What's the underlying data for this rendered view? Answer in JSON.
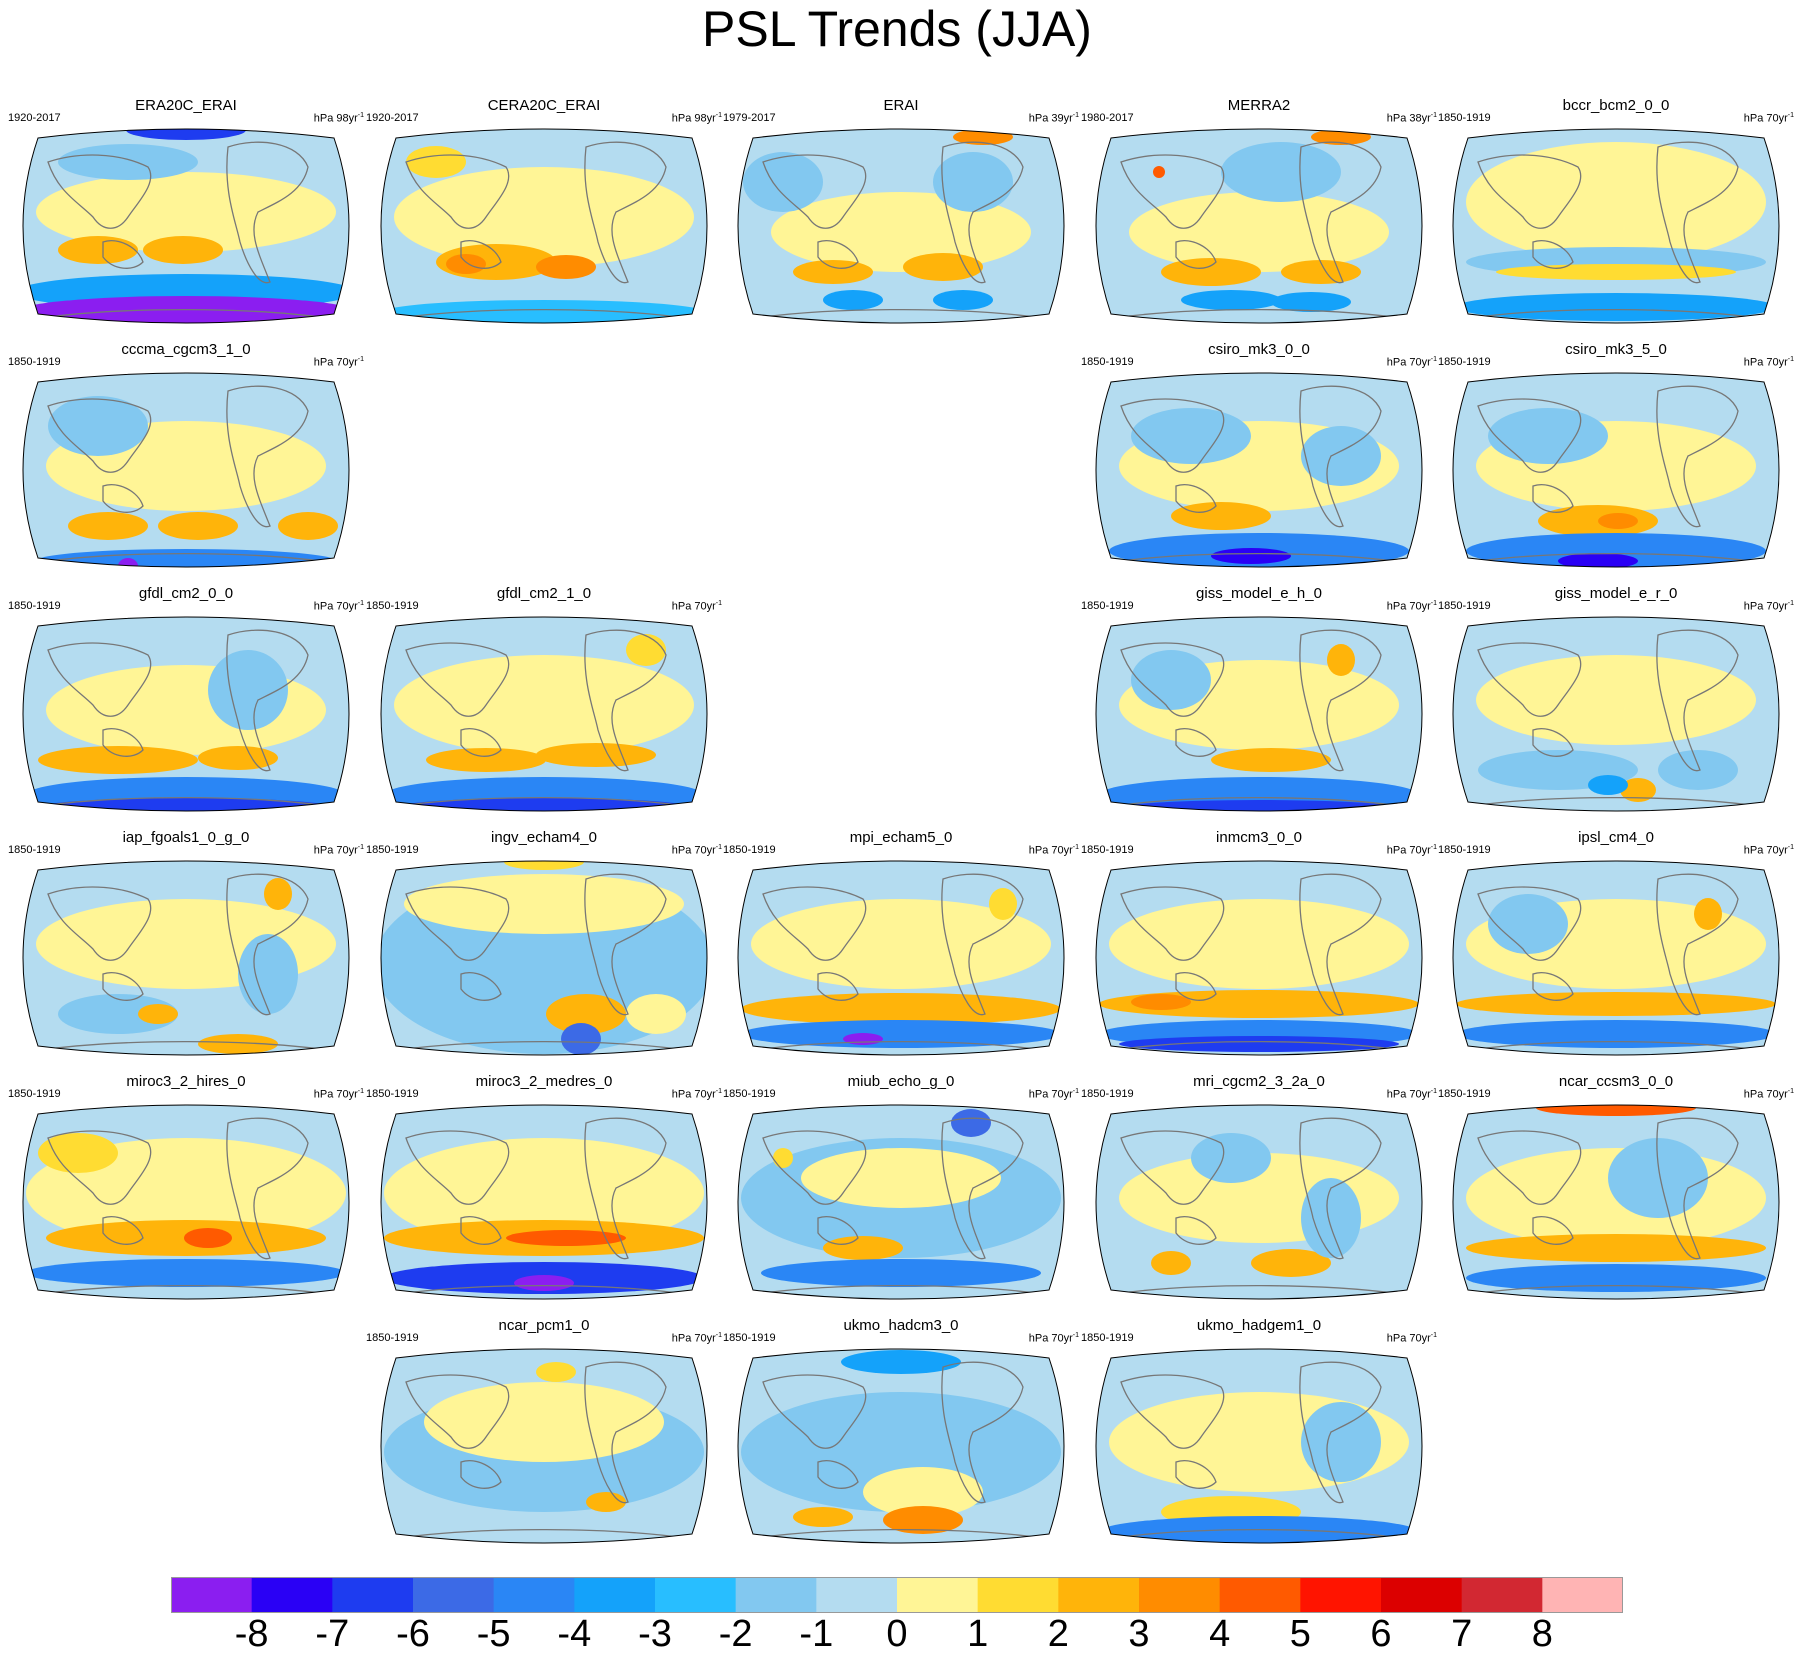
{
  "title": "PSL Trends (JJA)",
  "colorbar": {
    "colors": [
      "#8b1ef0",
      "#2a00f5",
      "#1e3cf0",
      "#3c6ae6",
      "#2a86f5",
      "#14a2fa",
      "#28beff",
      "#82c8f0",
      "#b4dcf0",
      "#fff596",
      "#ffdc32",
      "#ffb40a",
      "#ff8c00",
      "#ff5a00",
      "#ff1400",
      "#dc0000",
      "#d22832",
      "#ffb4b4"
    ],
    "labels": [
      "-8",
      "-7",
      "-6",
      "-5",
      "-4",
      "-3",
      "-2",
      "-1",
      "0",
      "1",
      "2",
      "3",
      "4",
      "5",
      "6",
      "7",
      "8"
    ]
  },
  "panels": [
    {
      "title": "ERA20C_ERAI",
      "period": "1920-2017",
      "units": "hPa 98yr",
      "exp": "-1"
    },
    {
      "title": "CERA20C_ERAI",
      "period": "1920-2017",
      "units": "hPa 98yr",
      "exp": "-1"
    },
    {
      "title": "ERAI",
      "period": "1979-2017",
      "units": "hPa 39yr",
      "exp": "-1"
    },
    {
      "title": "MERRA2",
      "period": "1980-2017",
      "units": "hPa 38yr",
      "exp": "-1"
    },
    {
      "title": "bccr_bcm2_0_0",
      "period": "1850-1919",
      "units": "hPa 70yr",
      "exp": "-1"
    },
    {
      "title": "cccma_cgcm3_1_0",
      "period": "1850-1919",
      "units": "hPa 70yr",
      "exp": "-1"
    },
    {
      "title": "csiro_mk3_0_0",
      "period": "1850-1919",
      "units": "hPa 70yr",
      "exp": "-1"
    },
    {
      "title": "csiro_mk3_5_0",
      "period": "1850-1919",
      "units": "hPa 70yr",
      "exp": "-1"
    },
    {
      "title": "gfdl_cm2_0_0",
      "period": "1850-1919",
      "units": "hPa 70yr",
      "exp": "-1"
    },
    {
      "title": "gfdl_cm2_1_0",
      "period": "1850-1919",
      "units": "hPa 70yr",
      "exp": "-1"
    },
    {
      "title": "giss_model_e_h_0",
      "period": "1850-1919",
      "units": "hPa 70yr",
      "exp": "-1"
    },
    {
      "title": "giss_model_e_r_0",
      "period": "1850-1919",
      "units": "hPa 70yr",
      "exp": "-1"
    },
    {
      "title": "iap_fgoals1_0_g_0",
      "period": "1850-1919",
      "units": "hPa 70yr",
      "exp": "-1"
    },
    {
      "title": "ingv_echam4_0",
      "period": "1850-1919",
      "units": "hPa 70yr",
      "exp": "-1"
    },
    {
      "title": "mpi_echam5_0",
      "period": "1850-1919",
      "units": "hPa 70yr",
      "exp": "-1"
    },
    {
      "title": "inmcm3_0_0",
      "period": "1850-1919",
      "units": "hPa 70yr",
      "exp": "-1"
    },
    {
      "title": "ipsl_cm4_0",
      "period": "1850-1919",
      "units": "hPa 70yr",
      "exp": "-1"
    },
    {
      "title": "miroc3_2_hires_0",
      "period": "1850-1919",
      "units": "hPa 70yr",
      "exp": "-1"
    },
    {
      "title": "miroc3_2_medres_0",
      "period": "1850-1919",
      "units": "hPa 70yr",
      "exp": "-1"
    },
    {
      "title": "miub_echo_g_0",
      "period": "1850-1919",
      "units": "hPa 70yr",
      "exp": "-1"
    },
    {
      "title": "mri_cgcm2_3_2a_0",
      "period": "1850-1919",
      "units": "hPa 70yr",
      "exp": "-1"
    },
    {
      "title": "ncar_ccsm3_0_0",
      "period": "1850-1919",
      "units": "hPa 70yr",
      "exp": "-1"
    },
    {
      "title": "ncar_pcm1_0",
      "period": "1850-1919",
      "units": "hPa 70yr",
      "exp": "-1"
    },
    {
      "title": "ukmo_hadcm3_0",
      "period": "1850-1919",
      "units": "hPa 70yr",
      "exp": "-1"
    },
    {
      "title": "ukmo_hadgem1_0",
      "period": "1850-1919",
      "units": "hPa 70yr",
      "exp": "-1"
    }
  ],
  "chart_data": {
    "type": "heatmap",
    "title": "PSL Trends (JJA)",
    "variable": "PSL",
    "season": "JJA",
    "colorbar_levels": [
      -8,
      -7,
      -6,
      -5,
      -4,
      -3,
      -2,
      -1,
      0,
      1,
      2,
      3,
      4,
      5,
      6,
      7,
      8
    ],
    "map_projection": "global robinson-like",
    "layout": "6 rows x 5 columns, 25 panels"
  }
}
